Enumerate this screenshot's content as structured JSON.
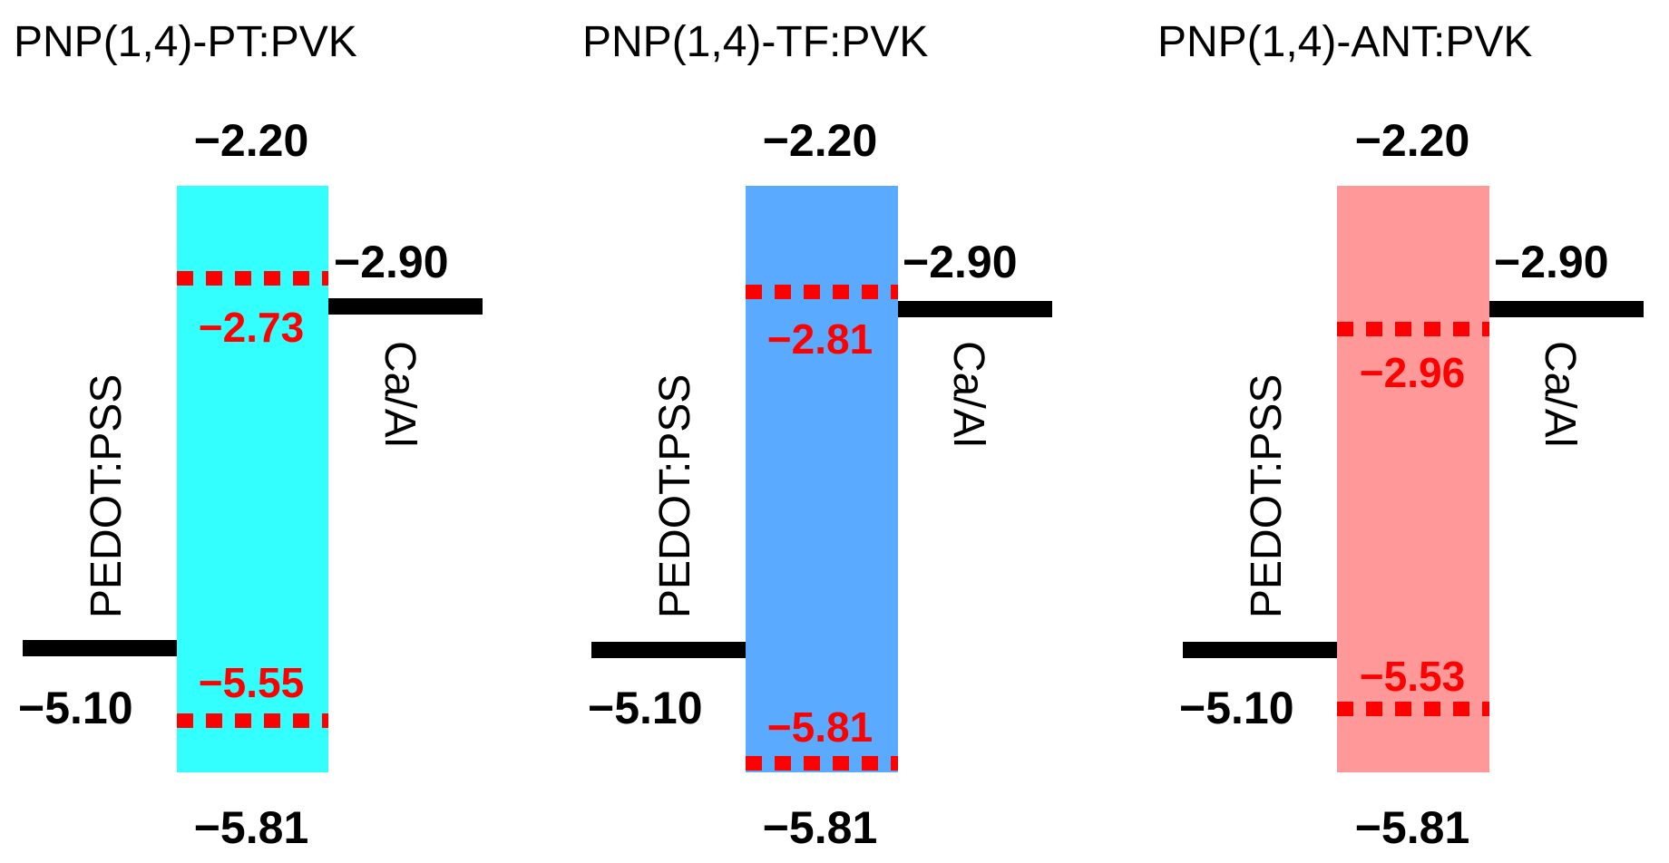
{
  "colors": {
    "level_line": "#000000",
    "dopant_level": "#ff0000"
  },
  "panels": [
    {
      "title": "PNP(1,4)-PT:PVK",
      "fill": "#33ffff",
      "host_lumo": "−2.20",
      "host_homo": "−5.81",
      "dopant_lumo": "−2.73",
      "dopant_homo": "−5.55",
      "anode_label": "PEDOT:PSS",
      "anode_value": "−5.10",
      "cathode_label": "Ca/Al",
      "cathode_value": "−2.90"
    },
    {
      "title": "PNP(1,4)-TF:PVK",
      "fill": "#5aaaff",
      "host_lumo": "−2.20",
      "host_homo": "−5.81",
      "dopant_lumo": "−2.81",
      "dopant_homo": "−5.81",
      "anode_label": "PEDOT:PSS",
      "anode_value": "−5.10",
      "cathode_label": "Ca/Al",
      "cathode_value": "−2.90"
    },
    {
      "title": "PNP(1,4)-ANT:PVK",
      "fill": "#ff9999",
      "host_lumo": "−2.20",
      "host_homo": "−5.81",
      "dopant_lumo": "−2.96",
      "dopant_homo": "−5.53",
      "anode_label": "PEDOT:PSS",
      "anode_value": "−5.10",
      "cathode_label": "Ca/Al",
      "cathode_value": "−2.90"
    }
  ]
}
